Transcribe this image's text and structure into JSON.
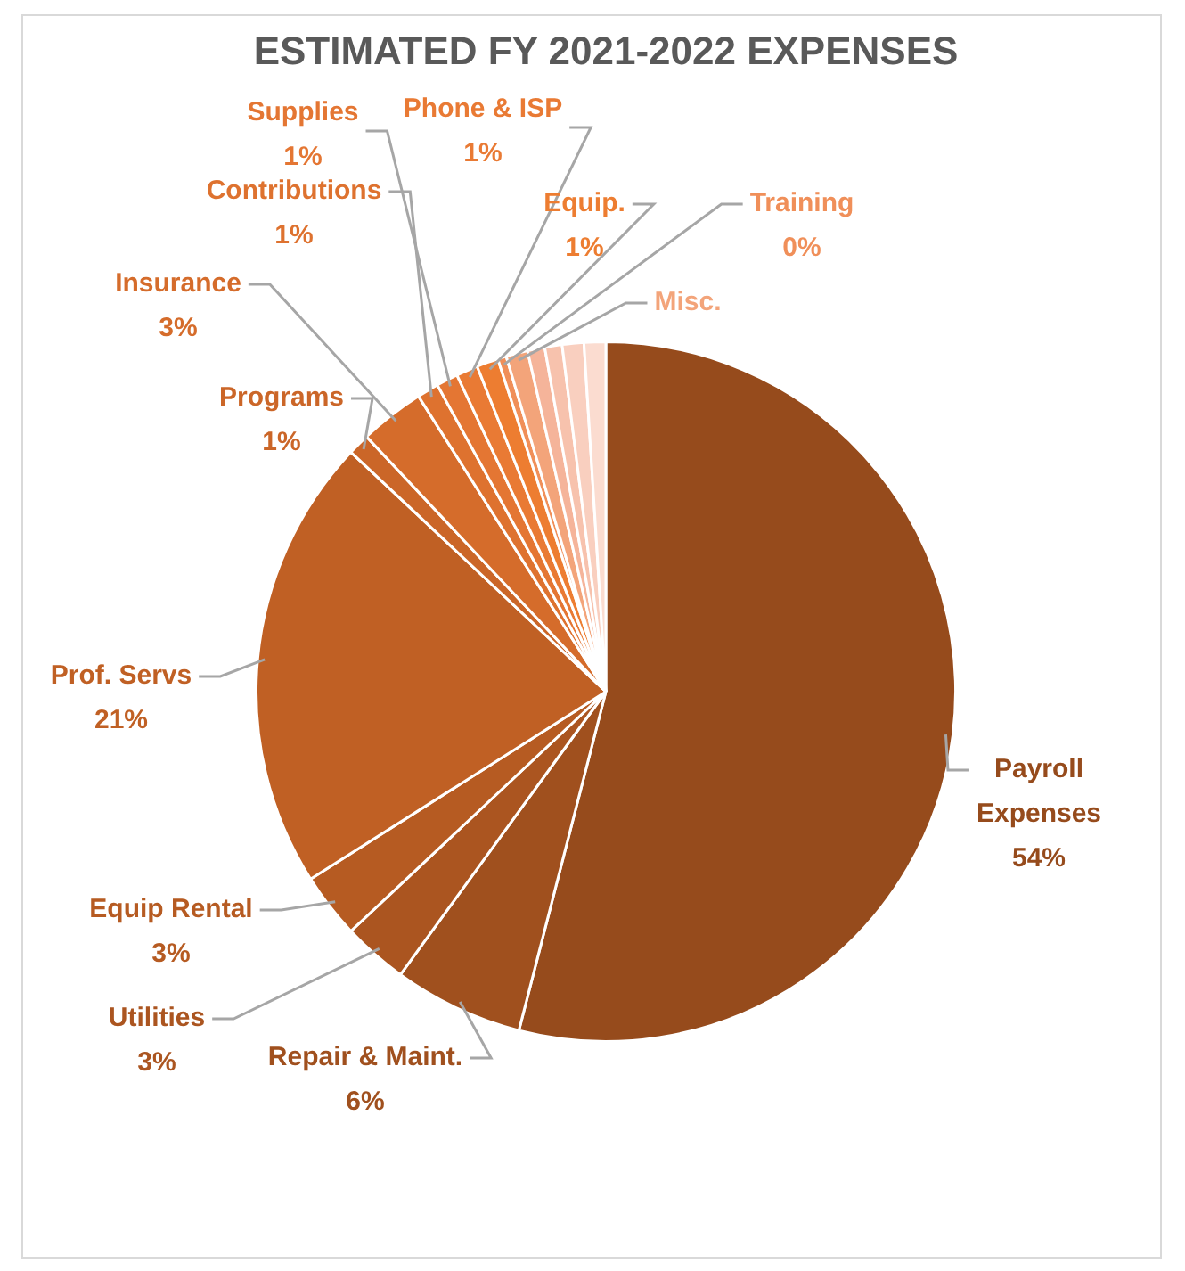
{
  "chart_data": {
    "type": "pie",
    "title": "ESTIMATED FY 2021-2022 EXPENSES",
    "categories": [
      "Payroll Expenses",
      "Repair & Maint.",
      "Utilities",
      "Equip Rental",
      "Prof. Servs",
      "Programs",
      "Insurance",
      "Contributions",
      "Supplies",
      "Phone & ISP",
      "Equip.",
      "Training",
      "Misc.",
      null,
      null,
      null,
      null
    ],
    "values": [
      54,
      6,
      3,
      3,
      21,
      1,
      3,
      1,
      1,
      1,
      1,
      0.4,
      1,
      0.8,
      0.8,
      1,
      1
    ],
    "value_labels": [
      "54%",
      "6%",
      "3%",
      "3%",
      "21%",
      "1%",
      "3%",
      "1%",
      "1%",
      "1%",
      "1%",
      "0%",
      null,
      null,
      null,
      null,
      null
    ],
    "colors": [
      "#964b1c",
      "#a0501e",
      "#ab5520",
      "#b65b22",
      "#c06024",
      "#cb6628",
      "#d56c2b",
      "#de722f",
      "#e47633",
      "#e97a34",
      "#ed7d31",
      "#f08f59",
      "#f3a47a",
      "#f5b49a",
      "#f7c2ad",
      "#f9cfbf",
      "#fbdcd0"
    ]
  }
}
